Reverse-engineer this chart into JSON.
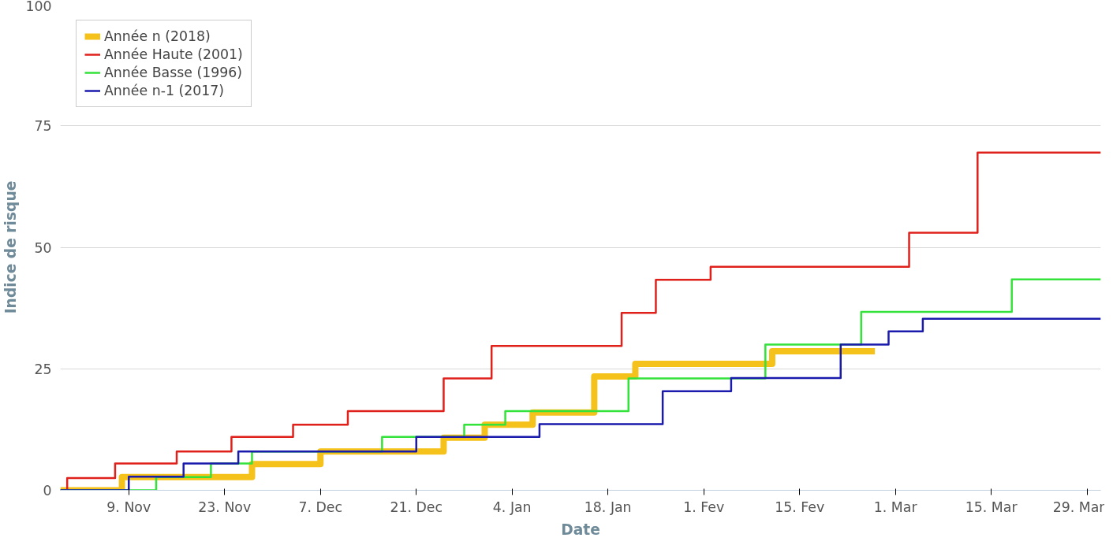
{
  "chart_data": {
    "type": "step",
    "xlabel": "Date",
    "ylabel": "Indice de risque",
    "ylim": [
      0,
      100
    ],
    "yticks": [
      0,
      25,
      50,
      75,
      100
    ],
    "xlim": [
      "2017-10-30",
      "2018-03-31"
    ],
    "xticks": [
      {
        "value": "2017-11-09",
        "label": "9. Nov"
      },
      {
        "value": "2017-11-23",
        "label": "23. Nov"
      },
      {
        "value": "2017-12-07",
        "label": "7. Dec"
      },
      {
        "value": "2017-12-21",
        "label": "21. Dec"
      },
      {
        "value": "2018-01-04",
        "label": "4. Jan"
      },
      {
        "value": "2018-01-18",
        "label": "18. Jan"
      },
      {
        "value": "2018-02-01",
        "label": "1. Fev"
      },
      {
        "value": "2018-02-15",
        "label": "15. Fev"
      },
      {
        "value": "2018-03-01",
        "label": "1. Mar"
      },
      {
        "value": "2018-03-15",
        "label": "15. Mar"
      },
      {
        "value": "2018-03-29",
        "label": "29. Mar"
      }
    ],
    "grid": "y",
    "legend": "top left",
    "series": [
      {
        "name": "Année n (2018)",
        "color": "#f5c21b",
        "x": [
          "2017-10-30",
          "2017-11-08",
          "2017-11-27",
          "2017-12-07",
          "2017-12-25",
          "2017-12-31",
          "2018-01-07",
          "2018-01-16",
          "2018-01-22",
          "2018-02-11",
          "2018-02-26"
        ],
        "values": [
          0,
          2.7,
          5.4,
          8,
          10.8,
          13.5,
          16,
          23.4,
          26,
          28.6,
          28.6
        ]
      },
      {
        "name": "Année Haute (2001)",
        "color": "#e0201b",
        "x": [
          "2017-10-30",
          "2017-10-31",
          "2017-11-07",
          "2017-11-16",
          "2017-11-24",
          "2017-12-03",
          "2017-12-11",
          "2017-12-25",
          "2018-01-01",
          "2018-01-20",
          "2018-01-25",
          "2018-02-02",
          "2018-03-03",
          "2018-03-13",
          "2018-03-31"
        ],
        "values": [
          0,
          2.5,
          5.5,
          8,
          11,
          13.5,
          16.3,
          23,
          29.7,
          36.5,
          43.3,
          46,
          53,
          69.5,
          69.5
        ]
      },
      {
        "name": "Année Basse (1996)",
        "color": "#33e23a",
        "x": [
          "2017-10-30",
          "2017-11-13",
          "2017-11-21",
          "2017-11-27",
          "2017-12-16",
          "2017-12-28",
          "2018-01-03",
          "2018-01-21",
          "2018-02-10",
          "2018-02-24",
          "2018-03-18",
          "2018-03-31"
        ],
        "values": [
          0,
          2.7,
          5.5,
          8,
          11,
          13.5,
          16.3,
          23,
          30,
          36.7,
          43.4,
          43.4
        ]
      },
      {
        "name": "Année n-1 (2017)",
        "color": "#1a1aad",
        "x": [
          "2017-10-30",
          "2017-11-09",
          "2017-11-17",
          "2017-11-25",
          "2017-12-21",
          "2018-01-08",
          "2018-01-26",
          "2018-02-05",
          "2018-02-21",
          "2018-02-28",
          "2018-03-05",
          "2018-03-31"
        ],
        "values": [
          0,
          2.8,
          5.5,
          8,
          11,
          13.6,
          20.4,
          23.1,
          30,
          32.7,
          35.3,
          35.3
        ]
      }
    ]
  }
}
